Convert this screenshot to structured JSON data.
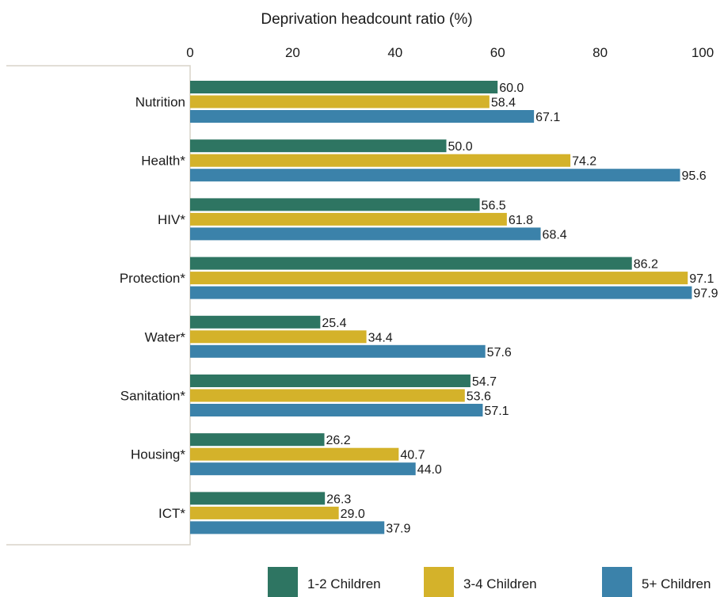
{
  "chart_data": {
    "type": "bar",
    "orientation": "horizontal",
    "title": "",
    "xlabel": "Deprivation headcount ratio (%)",
    "ylabel": "",
    "xlim": [
      0,
      100
    ],
    "xticks": [
      0,
      20,
      40,
      60,
      80,
      100
    ],
    "x_axis_position": "top",
    "grid": false,
    "legend_position": "bottom-right",
    "categories": [
      "Nutrition",
      "Health*",
      "HIV*",
      "Protection*",
      "Water*",
      "Sanitation*",
      "Housing*",
      "ICT*"
    ],
    "series": [
      {
        "name": "1-2 Children",
        "color": "#2e7562",
        "values": [
          60.0,
          50.0,
          56.5,
          86.2,
          25.4,
          54.7,
          26.2,
          26.3
        ],
        "labels": [
          "60.0",
          "50.0",
          "56.5",
          "86.2",
          "25.4",
          "54.7",
          "26.2",
          "26.3"
        ]
      },
      {
        "name": "3-4 Children",
        "color": "#d4b22a",
        "values": [
          58.4,
          74.2,
          61.8,
          97.1,
          34.4,
          53.6,
          40.7,
          29.0
        ],
        "labels": [
          "58.4",
          "74.2",
          "61.8",
          "97.1",
          "34.4",
          "53.6",
          "40.7",
          "29.0"
        ]
      },
      {
        "name": "5+ Children",
        "color": "#3b82aa",
        "values": [
          67.1,
          95.6,
          68.4,
          97.9,
          57.6,
          57.1,
          44.0,
          37.9
        ],
        "labels": [
          "67.1",
          "95.6",
          "68.4",
          "97.9",
          "57.6",
          "57.1",
          "44.0",
          "37.9"
        ]
      }
    ]
  }
}
